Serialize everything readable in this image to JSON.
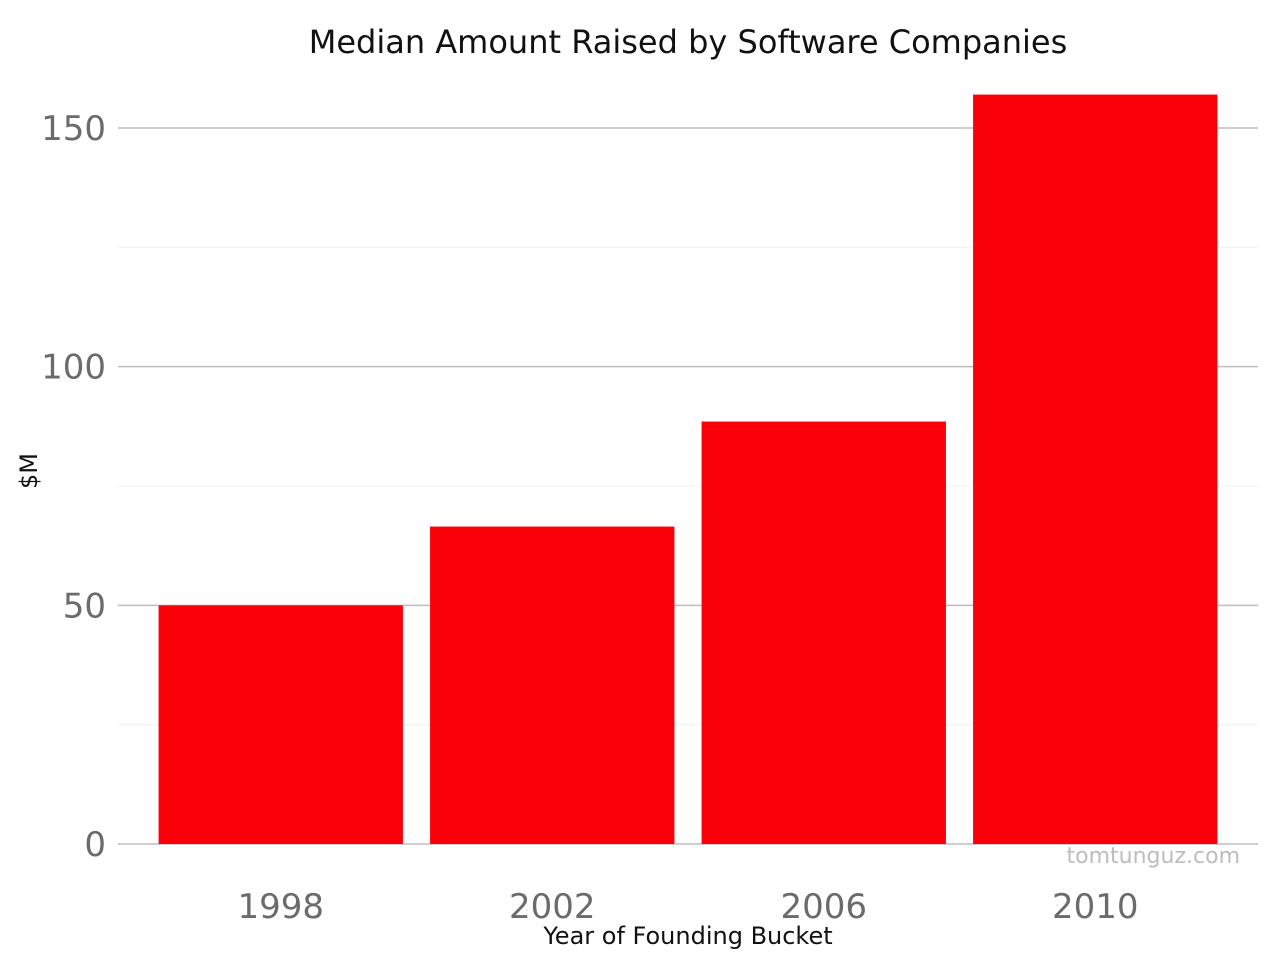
{
  "chart_data": {
    "type": "bar",
    "title": "Median Amount Raised by Software Companies",
    "xlabel": "Year of Founding Bucket",
    "ylabel": "$M",
    "categories": [
      "1998",
      "2002",
      "2006",
      "2010"
    ],
    "values": [
      50,
      66.5,
      88.5,
      157
    ],
    "ylim": [
      0,
      160
    ],
    "yticks": [
      0,
      50,
      100,
      150
    ],
    "grid": true,
    "legend": "none",
    "bar_color": "#fa0008"
  },
  "watermark": "tomtunguz.com"
}
